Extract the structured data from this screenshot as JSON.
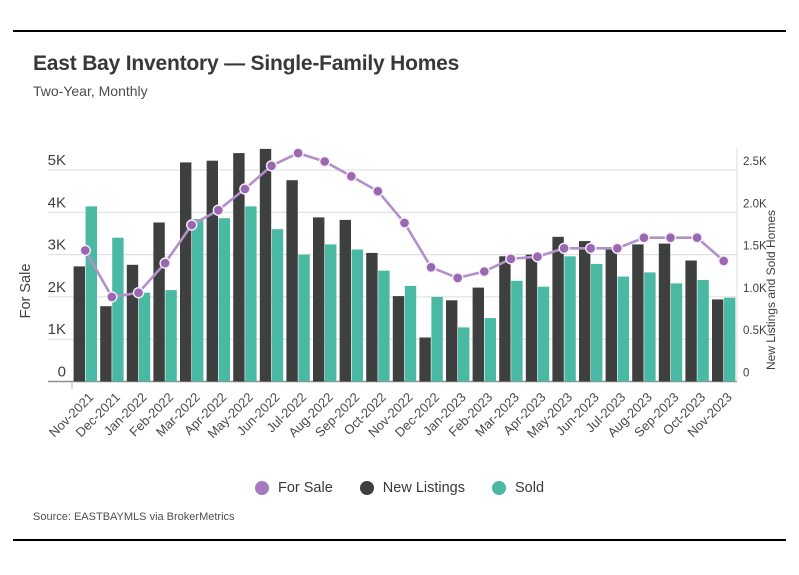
{
  "page": {
    "title": "East Bay Inventory — Single-Family Homes",
    "subtitle": "Two-Year, Monthly",
    "source": "Source: EASTBAYMLS via BrokerMetrics"
  },
  "colors": {
    "for_sale_line": "#b38fcc",
    "for_sale_marker": "#9a67b1",
    "new_listings": "#3e3f3f",
    "sold": "#4ab9a4",
    "grid": "#dcdcdc",
    "baseline": "#8f8f8f"
  },
  "legend": [
    {
      "label": "For Sale",
      "color": "#a678bd"
    },
    {
      "label": "New Listings",
      "color": "#3e3f3f"
    },
    {
      "label": "Sold",
      "color": "#4ab9a4"
    }
  ],
  "chart_data": {
    "type": "bar+line",
    "title": "East Bay Inventory — Single-Family Homes",
    "subtitle": "Two-Year, Monthly",
    "grid": true,
    "legend_position": "bottom",
    "categories": [
      "Nov-2021",
      "Dec-2021",
      "Jan-2022",
      "Feb-2022",
      "Mar-2022",
      "Apr-2022",
      "May-2022",
      "Jun-2022",
      "Jul-2022",
      "Aug-2022",
      "Sep-2022",
      "Oct-2022",
      "Nov-2022",
      "Dec-2022",
      "Jan-2023",
      "Feb-2023",
      "Mar-2023",
      "Apr-2023",
      "May-2023",
      "Jun-2023",
      "Jul-2023",
      "Aug-2023",
      "Sep-2023",
      "Oct-2023",
      "Nov-2023"
    ],
    "series": [
      {
        "name": "For Sale",
        "type": "line",
        "axis": "left",
        "values": [
          3100,
          2000,
          2100,
          2800,
          3700,
          4050,
          4550,
          5100,
          5400,
          5200,
          4850,
          4500,
          3750,
          2700,
          2450,
          2600,
          2900,
          2950,
          3150,
          3150,
          3150,
          3400,
          3400,
          3400,
          2850
        ]
      },
      {
        "name": "New Listings",
        "type": "bar",
        "axis": "right",
        "values": [
          1360,
          890,
          1380,
          1880,
          2590,
          2610,
          2700,
          2750,
          2380,
          1940,
          1910,
          1520,
          1010,
          520,
          960,
          1110,
          1480,
          1500,
          1710,
          1660,
          1580,
          1620,
          1630,
          1430,
          970
        ]
      },
      {
        "name": "Sold",
        "type": "bar",
        "axis": "right",
        "values": [
          2070,
          1700,
          1050,
          1080,
          1920,
          1930,
          2070,
          1800,
          1500,
          1620,
          1560,
          1310,
          1130,
          1000,
          640,
          750,
          1190,
          1120,
          1480,
          1390,
          1240,
          1290,
          1160,
          1200,
          990
        ]
      }
    ],
    "left_axis": {
      "label": "For Sale",
      "range": [
        0,
        5000
      ],
      "ticks": [
        "0",
        "1K",
        "2K",
        "3K",
        "4K",
        "5K"
      ]
    },
    "right_axis": {
      "label": "New Listings and Sold Homes",
      "range": [
        0,
        2500
      ],
      "ticks": [
        "0",
        "0.5K",
        "1.0K",
        "1.5K",
        "2.0K",
        "2.5K"
      ]
    }
  }
}
